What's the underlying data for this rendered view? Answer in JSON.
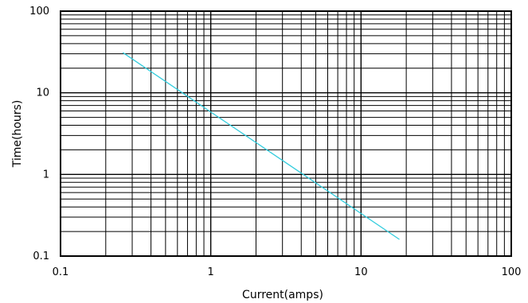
{
  "chart_data": {
    "type": "line",
    "title": "",
    "xlabel": "Current(amps)",
    "ylabel": "Time(hours)",
    "x_scale": "log",
    "y_scale": "log",
    "xlim": [
      0.1,
      100
    ],
    "ylim": [
      0.1,
      100
    ],
    "x_ticks": [
      {
        "value": 0.1,
        "label": "0.1"
      },
      {
        "value": 1,
        "label": "1"
      },
      {
        "value": 10,
        "label": "10"
      },
      {
        "value": 100,
        "label": "100"
      }
    ],
    "y_ticks": [
      {
        "value": 0.1,
        "label": "0.1"
      },
      {
        "value": 1,
        "label": "1"
      },
      {
        "value": 10,
        "label": "10"
      },
      {
        "value": 100,
        "label": "100"
      }
    ],
    "grid": true,
    "legend": "none",
    "series": [
      {
        "color": "#33ccdd",
        "points": [
          {
            "x": 0.26,
            "y": 31
          },
          {
            "x": 18,
            "y": 0.16
          }
        ]
      }
    ]
  }
}
